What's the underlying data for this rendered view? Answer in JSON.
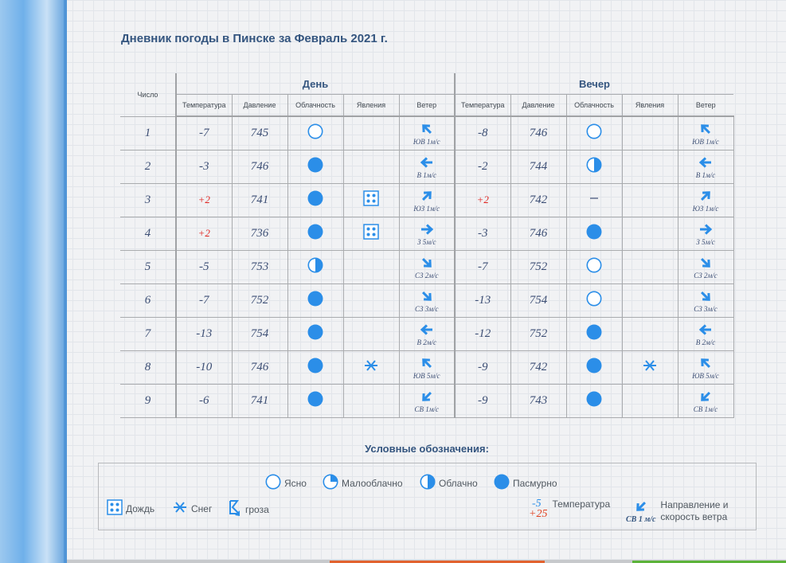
{
  "title": "Дневник погоды в Пинске за Февраль 2021 г.",
  "colors": {
    "accent": "#2b8ee8",
    "title": "#34557f",
    "positive_temp": "#e0241f",
    "text": "#3d4f75"
  },
  "table": {
    "col_day_number": "Число",
    "group_day": "День",
    "group_evening": "Вечер",
    "subheaders": [
      "Температура",
      "Давление",
      "Облачность",
      "Явления",
      "Ветер"
    ],
    "rows": [
      {
        "day": "1",
        "d": {
          "temp": "-7",
          "pressure": "745",
          "cloud": "clear",
          "phen": "",
          "wind_dir": "up-left",
          "wind": "ЮВ 1м/с"
        },
        "e": {
          "temp": "-8",
          "pressure": "746",
          "cloud": "clear",
          "phen": "",
          "wind_dir": "up-left",
          "wind": "ЮВ 1м/с"
        }
      },
      {
        "day": "2",
        "d": {
          "temp": "-3",
          "pressure": "746",
          "cloud": "overcast",
          "phen": "",
          "wind_dir": "left",
          "wind": "В 1м/с"
        },
        "e": {
          "temp": "-2",
          "pressure": "744",
          "cloud": "cloudy",
          "phen": "",
          "wind_dir": "left",
          "wind": "В 1м/с"
        }
      },
      {
        "day": "3",
        "d": {
          "temp": "+2",
          "pressure": "741",
          "cloud": "overcast",
          "phen": "rain",
          "wind_dir": "up-right",
          "wind": "ЮЗ 1м/с"
        },
        "e": {
          "temp": "+2",
          "pressure": "742",
          "cloud": "none",
          "phen": "",
          "wind_dir": "up-right",
          "wind": "ЮЗ 1м/с"
        }
      },
      {
        "day": "4",
        "d": {
          "temp": "+2",
          "pressure": "736",
          "cloud": "overcast",
          "phen": "rain",
          "wind_dir": "right",
          "wind": "З 5м/с"
        },
        "e": {
          "temp": "-3",
          "pressure": "746",
          "cloud": "overcast",
          "phen": "",
          "wind_dir": "right",
          "wind": "З 5м/с"
        }
      },
      {
        "day": "5",
        "d": {
          "temp": "-5",
          "pressure": "753",
          "cloud": "cloudy",
          "phen": "",
          "wind_dir": "down-right",
          "wind": "СЗ 2м/с"
        },
        "e": {
          "temp": "-7",
          "pressure": "752",
          "cloud": "clear",
          "phen": "",
          "wind_dir": "down-right",
          "wind": "СЗ 2м/с"
        }
      },
      {
        "day": "6",
        "d": {
          "temp": "-7",
          "pressure": "752",
          "cloud": "overcast",
          "phen": "",
          "wind_dir": "down-right",
          "wind": "СЗ 3м/с"
        },
        "e": {
          "temp": "-13",
          "pressure": "754",
          "cloud": "clear",
          "phen": "",
          "wind_dir": "down-right",
          "wind": "СЗ 3м/с"
        }
      },
      {
        "day": "7",
        "d": {
          "temp": "-13",
          "pressure": "754",
          "cloud": "overcast",
          "phen": "",
          "wind_dir": "left",
          "wind": "В 2м/с"
        },
        "e": {
          "temp": "-12",
          "pressure": "752",
          "cloud": "overcast",
          "phen": "",
          "wind_dir": "left",
          "wind": "В 2м/с"
        }
      },
      {
        "day": "8",
        "d": {
          "temp": "-10",
          "pressure": "746",
          "cloud": "overcast",
          "phen": "snow",
          "wind_dir": "up-left",
          "wind": "ЮВ 5м/с"
        },
        "e": {
          "temp": "-9",
          "pressure": "742",
          "cloud": "overcast",
          "phen": "snow",
          "wind_dir": "up-left",
          "wind": "ЮВ 5м/с"
        }
      },
      {
        "day": "9",
        "d": {
          "temp": "-6",
          "pressure": "741",
          "cloud": "overcast",
          "phen": "",
          "wind_dir": "down-left",
          "wind": "СВ 1м/с"
        },
        "e": {
          "temp": "-9",
          "pressure": "743",
          "cloud": "overcast",
          "phen": "",
          "wind_dir": "down-left",
          "wind": "СВ 1м/с"
        }
      }
    ]
  },
  "legend": {
    "title": "Условные обозначения:",
    "clear": "Ясно",
    "partly": "Малооблачно",
    "cloudy": "Облачно",
    "overcast": "Пасмурно",
    "rain": "Дождь",
    "snow": "Снег",
    "storm": "гроза",
    "temp_neg": "-5",
    "temp_pos": "+25",
    "temp_label": "Температура",
    "wind_sample": "СВ 1 м/с",
    "wind_label_1": "Направление и",
    "wind_label_2": "скорость ветра"
  }
}
